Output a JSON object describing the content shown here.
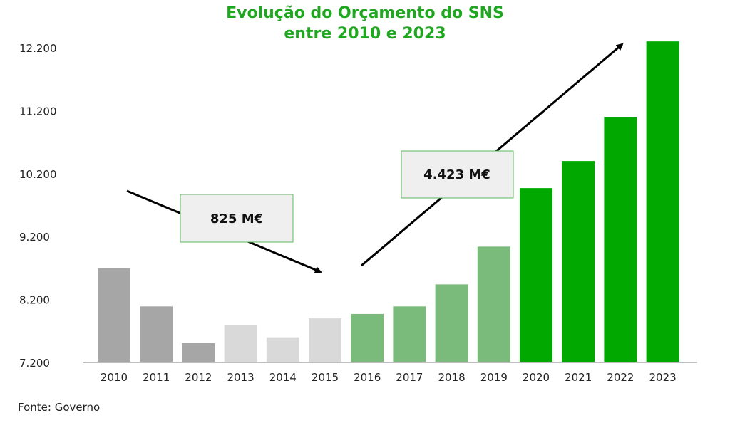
{
  "chart_data": {
    "type": "bar",
    "title_line1": "Evolução do Orçamento do SNS",
    "title_line2": "entre 2010 e 2023",
    "categories": [
      "2010",
      "2011",
      "2012",
      "2013",
      "2014",
      "2015",
      "2016",
      "2017",
      "2018",
      "2019",
      "2020",
      "2021",
      "2022",
      "2023"
    ],
    "values": [
      8700,
      8090,
      7510,
      7800,
      7600,
      7900,
      7970,
      8090,
      8440,
      9040,
      9970,
      10400,
      11100,
      12300
    ],
    "bar_colors": [
      "#a6a6a6",
      "#a6a6a6",
      "#a6a6a6",
      "#d9d9d9",
      "#d9d9d9",
      "#d9d9d9",
      "#7aba7a",
      "#7aba7a",
      "#7aba7a",
      "#7aba7a",
      "#00a800",
      "#00a800",
      "#00a800",
      "#00a800"
    ],
    "ylim": [
      7200,
      12200
    ],
    "yticks": [
      "7.200",
      "8.200",
      "9.200",
      "10.200",
      "11.200",
      "12.200"
    ],
    "ytick_values": [
      7200,
      8200,
      9200,
      10200,
      11200,
      12200
    ],
    "annotations": [
      {
        "text": "825 M€",
        "trend": "down"
      },
      {
        "text": "4.423 M€",
        "trend": "up"
      }
    ],
    "source": "Fonte: Governo",
    "title_color": "#1fa81f"
  }
}
